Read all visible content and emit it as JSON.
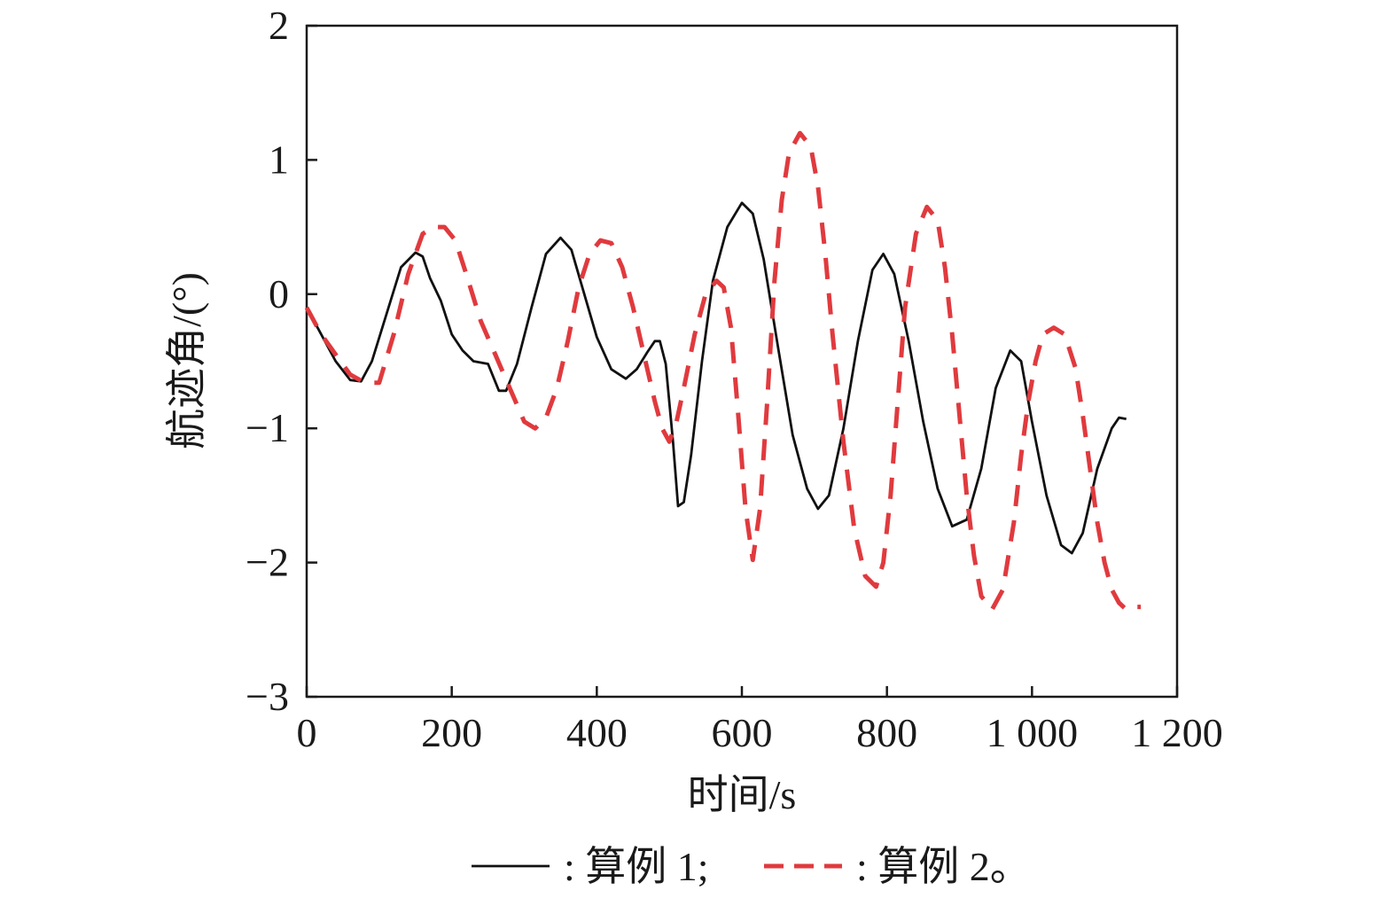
{
  "chart_data": {
    "type": "line",
    "title": "",
    "xlabel": "时间/s",
    "ylabel": "航迹角/(°)",
    "xlim": [
      0,
      1200
    ],
    "ylim": [
      -3,
      2
    ],
    "grid": false,
    "legend_position": "bottom",
    "x_ticks": [
      0,
      200,
      400,
      600,
      800,
      1000,
      1200
    ],
    "x_tick_labels": [
      "0",
      "200",
      "400",
      "600",
      "800",
      "1 000",
      "1 200"
    ],
    "y_ticks": [
      2,
      1,
      0,
      -1,
      -2,
      -3
    ],
    "y_tick_labels": [
      "2",
      "1",
      "0",
      "−1",
      "−2",
      "−3"
    ],
    "series": [
      {
        "name": "算例 1",
        "legend_label": ": 算例 1;",
        "color": "#111111",
        "style": "solid",
        "x": [
          0,
          20,
          40,
          60,
          75,
          90,
          110,
          130,
          150,
          160,
          170,
          185,
          200,
          215,
          230,
          250,
          265,
          275,
          290,
          310,
          330,
          350,
          365,
          380,
          400,
          420,
          440,
          455,
          470,
          480,
          487,
          495,
          505,
          512,
          520,
          530,
          545,
          560,
          580,
          600,
          615,
          630,
          650,
          670,
          690,
          705,
          720,
          740,
          760,
          780,
          795,
          810,
          830,
          850,
          870,
          890,
          910,
          930,
          950,
          970,
          985,
          1000,
          1020,
          1040,
          1055,
          1070,
          1090,
          1110,
          1120,
          1130
        ],
        "y": [
          -0.1,
          -0.3,
          -0.5,
          -0.64,
          -0.65,
          -0.5,
          -0.15,
          0.2,
          0.31,
          0.28,
          0.12,
          -0.05,
          -0.3,
          -0.42,
          -0.5,
          -0.52,
          -0.72,
          -0.72,
          -0.52,
          -0.1,
          0.3,
          0.42,
          0.33,
          0.05,
          -0.32,
          -0.56,
          -0.63,
          -0.56,
          -0.43,
          -0.35,
          -0.35,
          -0.52,
          -1.1,
          -1.58,
          -1.55,
          -1.2,
          -0.5,
          0.1,
          0.5,
          0.68,
          0.6,
          0.26,
          -0.4,
          -1.05,
          -1.45,
          -1.6,
          -1.5,
          -1.0,
          -0.35,
          0.18,
          0.3,
          0.15,
          -0.35,
          -0.95,
          -1.45,
          -1.73,
          -1.68,
          -1.3,
          -0.7,
          -0.42,
          -0.5,
          -0.95,
          -1.5,
          -1.87,
          -1.93,
          -1.78,
          -1.3,
          -1.0,
          -0.92,
          -0.93
        ]
      },
      {
        "name": "算例 2",
        "legend_label": ": 算例 2。",
        "color": "#e03a3e",
        "style": "dashed",
        "x": [
          0,
          20,
          40,
          60,
          80,
          100,
          120,
          140,
          160,
          175,
          190,
          205,
          220,
          240,
          260,
          280,
          300,
          315,
          330,
          345,
          360,
          375,
          390,
          405,
          420,
          435,
          450,
          465,
          480,
          490,
          500,
          510,
          520,
          535,
          550,
          565,
          575,
          585,
          595,
          605,
          615,
          625,
          635,
          645,
          655,
          665,
          680,
          695,
          705,
          715,
          725,
          740,
          755,
          770,
          785,
          795,
          805,
          815,
          825,
          840,
          855,
          870,
          880,
          890,
          900,
          910,
          920,
          930,
          945,
          960,
          975,
          985,
          995,
          1005,
          1015,
          1030,
          1045,
          1060,
          1070,
          1080,
          1090,
          1100,
          1110,
          1120,
          1130,
          1140,
          1150
        ],
        "y": [
          -0.1,
          -0.3,
          -0.45,
          -0.6,
          -0.66,
          -0.66,
          -0.3,
          0.15,
          0.45,
          0.5,
          0.5,
          0.4,
          0.15,
          -0.2,
          -0.45,
          -0.7,
          -0.95,
          -1.0,
          -0.92,
          -0.7,
          -0.35,
          0.05,
          0.3,
          0.4,
          0.38,
          0.2,
          -0.1,
          -0.45,
          -0.8,
          -1.0,
          -1.1,
          -0.95,
          -0.7,
          -0.3,
          0.0,
          0.1,
          0.05,
          -0.25,
          -0.9,
          -1.6,
          -1.98,
          -1.6,
          -0.8,
          0.1,
          0.7,
          1.05,
          1.2,
          1.1,
          0.8,
          0.3,
          -0.3,
          -1.1,
          -1.75,
          -2.1,
          -2.18,
          -2.0,
          -1.5,
          -0.8,
          -0.1,
          0.45,
          0.65,
          0.55,
          0.2,
          -0.3,
          -0.9,
          -1.5,
          -1.95,
          -2.25,
          -2.35,
          -2.2,
          -1.7,
          -1.2,
          -0.8,
          -0.5,
          -0.3,
          -0.25,
          -0.3,
          -0.55,
          -0.9,
          -1.3,
          -1.7,
          -2.0,
          -2.2,
          -2.3,
          -2.35,
          -2.33,
          -2.33
        ]
      }
    ]
  }
}
